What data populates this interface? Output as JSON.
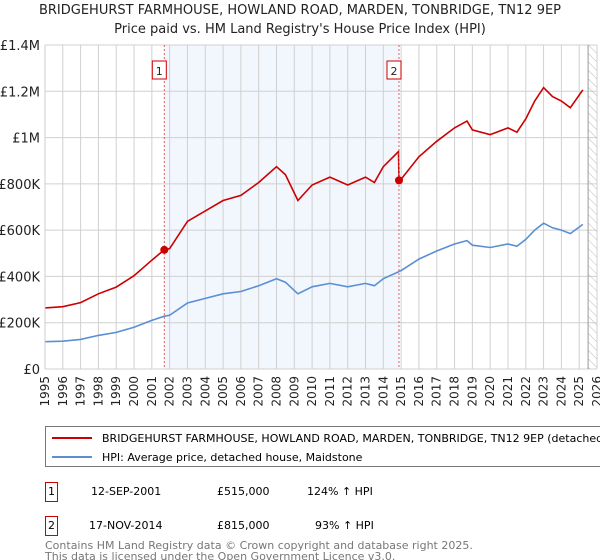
{
  "chart_data": {
    "type": "line",
    "title": "BRIDGEHURST FARMHOUSE, HOWLAND ROAD, MARDEN, TONBRIDGE, TN12 9EP",
    "subtitle": "Price paid vs. HM Land Registry's House Price Index (HPI)",
    "xlim": [
      1995,
      2026
    ],
    "ylim": [
      0,
      1400000
    ],
    "x_ticks": [
      "1995",
      "1996",
      "1997",
      "1998",
      "1999",
      "2000",
      "2001",
      "2002",
      "2003",
      "2004",
      "2005",
      "2006",
      "2007",
      "2008",
      "2009",
      "2010",
      "2011",
      "2012",
      "2013",
      "2014",
      "2015",
      "2016",
      "2017",
      "2018",
      "2019",
      "2020",
      "2021",
      "2022",
      "2023",
      "2024",
      "2025",
      "2026"
    ],
    "y_ticks": [
      {
        "v": 0,
        "label": "£0"
      },
      {
        "v": 200000,
        "label": "£200K"
      },
      {
        "v": 400000,
        "label": "£400K"
      },
      {
        "v": 600000,
        "label": "£600K"
      },
      {
        "v": 800000,
        "label": "£800K"
      },
      {
        "v": 1000000,
        "label": "£1M"
      },
      {
        "v": 1200000,
        "label": "£1.2M"
      },
      {
        "v": 1400000,
        "label": "£1.4M"
      }
    ],
    "grid": true,
    "x": [
      1995,
      1996,
      1997,
      1998,
      1999,
      2000,
      2001,
      2001.7,
      2002,
      2003,
      2004,
      2005,
      2006,
      2007,
      2008,
      2008.5,
      2009.2,
      2010,
      2011,
      2012,
      2013,
      2013.5,
      2014,
      2014.85,
      2014.88,
      2015,
      2016,
      2017,
      2018,
      2018.7,
      2019,
      2020,
      2021,
      2021.5,
      2022,
      2022.5,
      2023,
      2023.5,
      2024,
      2024.5,
      2025.2
    ],
    "series": [
      {
        "name": "BRIDGEHURST FARMHOUSE, HOWLAND ROAD, MARDEN, TONBRIDGE, TN12 9EP (detached house)",
        "color": "#cc0000",
        "values": [
          264000,
          269000,
          287000,
          325000,
          354000,
          403000,
          470000,
          515000,
          520000,
          638000,
          683000,
          728000,
          750000,
          806000,
          874000,
          840000,
          728000,
          795000,
          829000,
          795000,
          829000,
          806000,
          874000,
          940000,
          815000,
          820000,
          917000,
          984000,
          1042000,
          1071000,
          1033000,
          1013000,
          1042000,
          1023000,
          1081000,
          1158000,
          1216000,
          1177000,
          1158000,
          1129000,
          1206000
        ]
      },
      {
        "name": "HPI: Average price, detached house, Maidstone",
        "color": "#5b8fd4",
        "values": [
          118000,
          120000,
          128000,
          145000,
          158000,
          180000,
          210000,
          228000,
          232000,
          285000,
          305000,
          325000,
          335000,
          360000,
          390000,
          375000,
          325000,
          355000,
          370000,
          355000,
          370000,
          360000,
          390000,
          420000,
          422000,
          425000,
          475000,
          510000,
          540000,
          555000,
          535000,
          525000,
          540000,
          530000,
          560000,
          600000,
          630000,
          610000,
          600000,
          585000,
          625000
        ]
      }
    ],
    "sales": [
      {
        "id": "1",
        "x": 2001.7,
        "value": 515000,
        "date": "12-SEP-2001",
        "price": "£515,000",
        "hpi": "124% ↑ HPI"
      },
      {
        "id": "2",
        "x": 2014.88,
        "value": 815000,
        "date": "17-NOV-2014",
        "price": "£815,000",
        "hpi": "93% ↑ HPI"
      }
    ],
    "forecast_start": 2025.5
  },
  "footer": {
    "line1": "Contains HM Land Registry data © Crown copyright and database right 2025.",
    "line2": "This data is licensed under the Open Government Licence v3.0."
  }
}
